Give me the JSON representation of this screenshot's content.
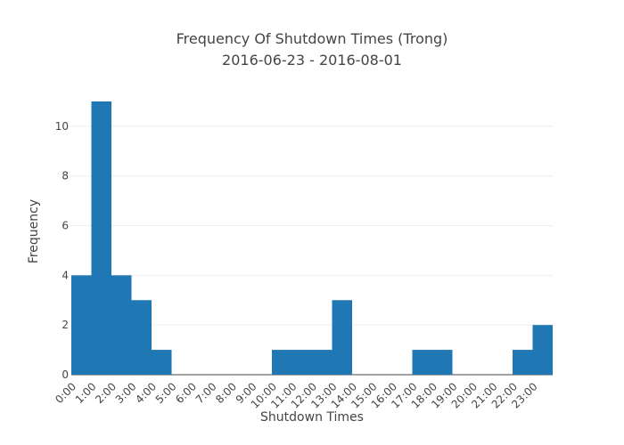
{
  "chart_data": {
    "type": "bar",
    "title_line1": "Frequency Of Shutdown Times (Trong)",
    "title_line2": "2016-06-23 - 2016-08-01",
    "xlabel": "Shutdown Times",
    "ylabel": "Frequency",
    "bar_color": "#1f77b4",
    "grid": true,
    "ylim": [
      0,
      11.5
    ],
    "yticks": [
      0,
      2,
      4,
      6,
      8,
      10
    ],
    "categories": [
      "0:00",
      "1:00",
      "2:00",
      "3:00",
      "4:00",
      "5:00",
      "6:00",
      "7:00",
      "8:00",
      "9:00",
      "10:00",
      "11:00",
      "12:00",
      "13:00",
      "14:00",
      "15:00",
      "16:00",
      "17:00",
      "18:00",
      "19:00",
      "20:00",
      "21:00",
      "22:00",
      "23:00"
    ],
    "values": [
      4,
      11,
      4,
      3,
      1,
      0,
      0,
      0,
      0,
      0,
      1,
      1,
      1,
      3,
      0,
      0,
      0,
      1,
      1,
      0,
      0,
      0,
      1,
      2
    ]
  }
}
